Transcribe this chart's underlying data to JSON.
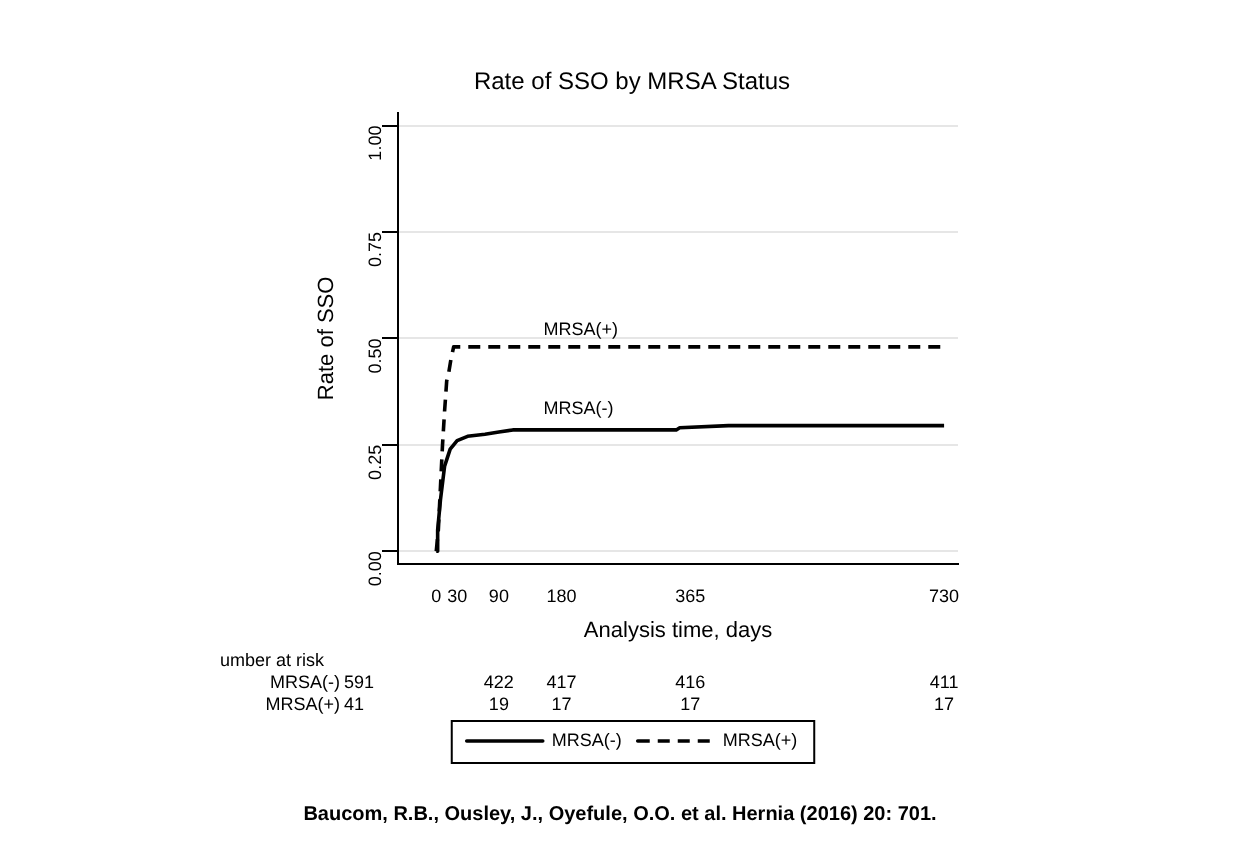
{
  "chart_data": {
    "type": "line",
    "title": "Rate of SSO by MRSA Status",
    "xlabel": "Analysis time, days",
    "ylabel": "Rate of SSO",
    "xlim": [
      -55,
      750
    ],
    "xticks": [
      0,
      30,
      90,
      180,
      365,
      730
    ],
    "ylim": [
      -0.03,
      1.03
    ],
    "yticks": [
      {
        "value": 0,
        "label": "0.00"
      },
      {
        "value": 0.25,
        "label": "0.25"
      },
      {
        "value": 0.5,
        "label": "0.50"
      },
      {
        "value": 0.75,
        "label": "0.75"
      },
      {
        "value": 1,
        "label": "1.00"
      }
    ],
    "grid": "y",
    "legend": "bottom",
    "marker": "none",
    "series": [
      {
        "name": "MRSA(-)",
        "color": "#000000",
        "line_style": "solid",
        "x": [
          0,
          2,
          6,
          12,
          20,
          30,
          45,
          70,
          90,
          110,
          345,
          350,
          420,
          730
        ],
        "values": [
          0,
          0.05,
          0.12,
          0.2,
          0.24,
          0.26,
          0.27,
          0.275,
          0.28,
          0.285,
          0.285,
          0.29,
          0.295,
          0.295
        ]
      },
      {
        "name": "MRSA(+)",
        "color": "#000000",
        "line_style": "dashed",
        "x": [
          0,
          3,
          6,
          9,
          12,
          15,
          18,
          21,
          25,
          730
        ],
        "values": [
          0,
          0.05,
          0.15,
          0.25,
          0.33,
          0.4,
          0.42,
          0.45,
          0.48,
          0.48
        ]
      }
    ],
    "annotations": [
      "umber at risk",
      "MRSA(-) 591 422 417 416 411",
      "MRSA(+) 41 19 17 17 17",
      "Baucom, R.B., Ousley, J., Oyefule, O.O. et al. Hernia (2016) 20: 701."
    ]
  }
}
